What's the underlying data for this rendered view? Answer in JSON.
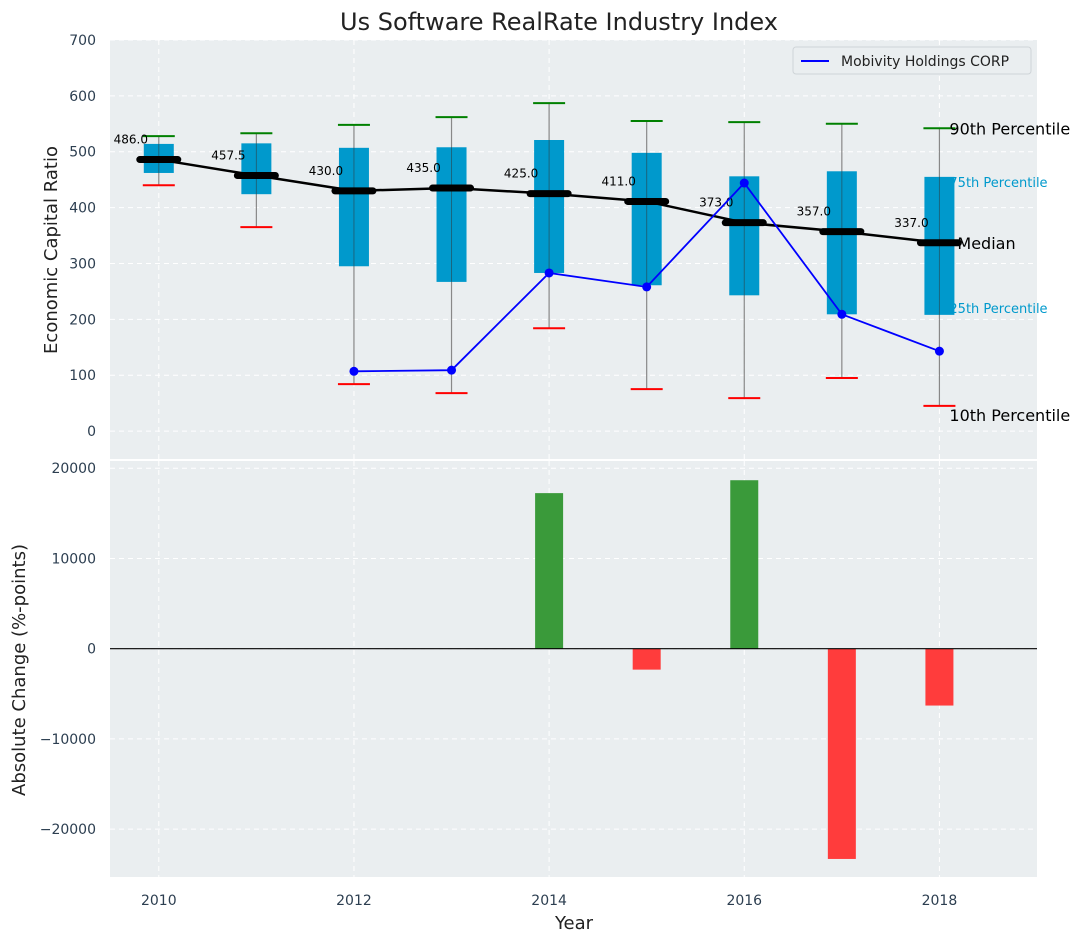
{
  "chart_data": [
    {
      "type": "box",
      "title": "Us Software RealRate Industry Index",
      "xlabel": "",
      "ylabel": "Economic Capital Ratio",
      "ylim": [
        -50,
        700
      ],
      "xlim": [
        2009.5,
        2019
      ],
      "yticks": [
        0,
        100,
        200,
        300,
        400,
        500,
        600,
        700
      ],
      "grid": true,
      "legend": {
        "placement": "top-right",
        "entries": [
          "Mobivity Holdings CORP"
        ]
      },
      "x": [
        2010,
        2011,
        2012,
        2013,
        2014,
        2015,
        2016,
        2017,
        2018
      ],
      "p10": [
        440,
        365,
        84,
        68,
        184,
        75,
        59,
        95,
        45
      ],
      "p25": [
        462,
        424,
        295,
        267,
        283,
        261,
        243,
        209,
        208
      ],
      "median": [
        486.0,
        457.5,
        430.0,
        435.0,
        425.0,
        411.0,
        373.0,
        357.0,
        337.0
      ],
      "median_labels": [
        "486.0",
        "457.5",
        "430.0",
        "435.0",
        "425.0",
        "411.0",
        "373.0",
        "357.0",
        "337.0"
      ],
      "p75": [
        514,
        515,
        507,
        508,
        521,
        498,
        456,
        465,
        455
      ],
      "p90": [
        528,
        533,
        548,
        562,
        587,
        555,
        553,
        550,
        542
      ],
      "series": [
        {
          "name": "Mobivity Holdings CORP",
          "x": [
            2012,
            2013,
            2014,
            2015,
            2016,
            2017,
            2018
          ],
          "values": [
            107,
            109,
            283,
            258,
            444,
            209,
            143
          ],
          "color": "#0000ff"
        }
      ],
      "annotations": [
        "90th Percentile",
        "75th Percentile",
        "Median",
        "25th Percentile",
        "10th Percentile"
      ],
      "colors": {
        "box": "#0099cc",
        "median": "#000000",
        "p90": "#008000",
        "p10": "#ff0000"
      }
    },
    {
      "type": "bar",
      "xlabel": "Year",
      "ylabel": "Absolute Change (%-points)",
      "ylim": [
        -25300,
        20800
      ],
      "xlim": [
        2009.5,
        2019
      ],
      "yticks": [
        -20000,
        -10000,
        0,
        10000,
        20000
      ],
      "ytick_labels": [
        "−20000",
        "−10000",
        "0",
        "10000",
        "20000"
      ],
      "xticks": [
        2010,
        2012,
        2014,
        2016,
        2018
      ],
      "x": [
        2014,
        2015,
        2016,
        2017,
        2018
      ],
      "values": [
        17240,
        -2320,
        18670,
        -23300,
        -6300
      ],
      "colors": {
        "positive": "#3a9a3a",
        "negative": "#ff3c3c"
      }
    }
  ]
}
